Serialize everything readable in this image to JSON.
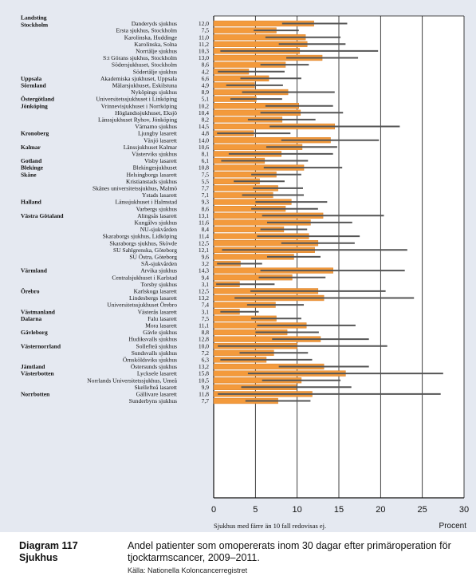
{
  "chart_data": {
    "type": "bar",
    "orientation": "horizontal",
    "x_ticks": [
      0,
      5,
      10,
      15,
      20,
      25,
      30
    ],
    "xlim": [
      0,
      30
    ],
    "xlabel": "Procent",
    "note": "Sjukhus med färre än 10 fall redovisas ej.",
    "colors": {
      "bar": "#f39a3c",
      "bar_stroke": "#d9822b",
      "interval": "#555555",
      "background": "#e5e9f1",
      "grid": "#111111"
    },
    "rows": [
      {
        "region": "Landsting Stockholm",
        "hospital": "Danderyds sjukhus",
        "value": 12.0,
        "low": 8.2,
        "high": 16.0
      },
      {
        "region": "",
        "hospital": "Ersta sjukhus, Stockholm",
        "value": 7.5,
        "low": 4.8,
        "high": 10.2
      },
      {
        "region": "",
        "hospital": "Karolinska, Huddinge",
        "value": 11.0,
        "low": 6.2,
        "high": 15.2
      },
      {
        "region": "",
        "hospital": "Karolinska, Solna",
        "value": 11.2,
        "low": 7.8,
        "high": 15.8
      },
      {
        "region": "",
        "hospital": "Norrtälje sjukhus",
        "value": 10.3,
        "low": 0.8,
        "high": 19.7
      },
      {
        "region": "",
        "hospital": "S:t Görans sjukhus, Stockholm",
        "value": 13.0,
        "low": 8.7,
        "high": 17.3
      },
      {
        "region": "",
        "hospital": "Södersjukhuset, Stockholm",
        "value": 8.6,
        "low": 5.6,
        "high": 11.4
      },
      {
        "region": "",
        "hospital": "Södertälje sjukhus",
        "value": 4.2,
        "low": 0.5,
        "high": 8.5
      },
      {
        "region": "Uppsala",
        "hospital": "Akademiska sjukhuset, Uppsala",
        "value": 6.6,
        "low": 3.2,
        "high": 10.5
      },
      {
        "region": "Sörmland",
        "hospital": "Mälarsjukhuset, Eskilstuna",
        "value": 4.9,
        "low": 1.5,
        "high": 8.3
      },
      {
        "region": "",
        "hospital": "Nyköpings sjukhus",
        "value": 8.9,
        "low": 3.4,
        "high": 14.5
      },
      {
        "region": "Östergötland",
        "hospital": "Universitetssjukhuset i Linköping",
        "value": 5.1,
        "low": 2.0,
        "high": 8.2
      },
      {
        "region": "Jönköping",
        "hospital": "Vrinnevisjukhuset i Norrköping",
        "value": 10.2,
        "low": 6.2,
        "high": 14.3
      },
      {
        "region": "",
        "hospital": "Höglandssjukhuset, Eksjö",
        "value": 10.4,
        "low": 5.6,
        "high": 15.5
      },
      {
        "region": "",
        "hospital": "Länssjukhuset Ryhov, Jönköping",
        "value": 8.2,
        "low": 4.1,
        "high": 12.2
      },
      {
        "region": "",
        "hospital": "Värnamo sjukhus",
        "value": 14.5,
        "low": 6.7,
        "high": 22.3
      },
      {
        "region": "Kronoberg",
        "hospital": "Ljungby lasarett",
        "value": 4.8,
        "low": 0.4,
        "high": 9.2
      },
      {
        "region": "",
        "hospital": "Växjö lasarett",
        "value": 14.0,
        "low": 8.1,
        "high": 19.8
      },
      {
        "region": "Kalmar",
        "hospital": "Länssjukhuset Kalmar",
        "value": 10.6,
        "low": 6.3,
        "high": 14.8
      },
      {
        "region": "",
        "hospital": "Västerviks sjukhus",
        "value": 8.1,
        "low": 1.8,
        "high": 14.3
      },
      {
        "region": "Gotland",
        "hospital": "Visby lasarett",
        "value": 6.1,
        "low": 0.9,
        "high": 11.3
      },
      {
        "region": "Blekinge",
        "hospital": "Blekingesjukhuset",
        "value": 10.8,
        "low": 6.0,
        "high": 15.4
      },
      {
        "region": "Skåne",
        "hospital": "Helsingborgs lasarett",
        "value": 7.5,
        "low": 4.5,
        "high": 10.5
      },
      {
        "region": "",
        "hospital": "Kristianstads sjukhus",
        "value": 5.5,
        "low": 2.4,
        "high": 8.5
      },
      {
        "region": "",
        "hospital": "Skånes universitetssjukhus, Malmö",
        "value": 7.7,
        "low": 4.7,
        "high": 10.7
      },
      {
        "region": "",
        "hospital": "Ystads lasarett",
        "value": 7.1,
        "low": 3.4,
        "high": 10.8
      },
      {
        "region": "Halland",
        "hospital": "Länssjukhuset i Halmstad",
        "value": 9.3,
        "low": 5.0,
        "high": 13.6
      },
      {
        "region": "",
        "hospital": "Varbergs sjukhus",
        "value": 8.6,
        "low": 4.5,
        "high": 12.5
      },
      {
        "region": "Västra Götaland",
        "hospital": "Alingsås lasarett",
        "value": 13.1,
        "low": 5.8,
        "high": 20.4
      },
      {
        "region": "",
        "hospital": "Kungälvs sjukhus",
        "value": 11.6,
        "low": 6.4,
        "high": 16.6
      },
      {
        "region": "",
        "hospital": "NU-sjukvården",
        "value": 8.4,
        "low": 5.6,
        "high": 11.2
      },
      {
        "region": "",
        "hospital": "Skaraborgs sjukhus, Lidköping",
        "value": 11.4,
        "low": 5.2,
        "high": 17.5
      },
      {
        "region": "",
        "hospital": "Skaraborgs sjukhus, Skövde",
        "value": 12.5,
        "low": 8.1,
        "high": 16.9
      },
      {
        "region": "",
        "hospital": "SU Sahlgrenska, Göteborg",
        "value": 12.1,
        "low": 1.0,
        "high": 23.2
      },
      {
        "region": "",
        "hospital": "SU Östra, Göteborg",
        "value": 9.6,
        "low": 6.4,
        "high": 12.8
      },
      {
        "region": "",
        "hospital": "SÄ-sjukvården",
        "value": 3.2,
        "low": 0.4,
        "high": 5.8
      },
      {
        "region": "Värmland",
        "hospital": "Arvika sjukhus",
        "value": 14.3,
        "low": 5.6,
        "high": 22.9
      },
      {
        "region": "",
        "hospital": "Centralsjukhuset i Karlstad",
        "value": 9.4,
        "low": 5.4,
        "high": 13.4
      },
      {
        "region": "",
        "hospital": "Torsby sjukhus",
        "value": 3.1,
        "low": 0.3,
        "high": 7.3
      },
      {
        "region": "Örebro",
        "hospital": "Karlskoga lasarett",
        "value": 12.5,
        "low": 4.4,
        "high": 20.6
      },
      {
        "region": "",
        "hospital": "Lindesbergs lasarett",
        "value": 13.2,
        "low": 2.5,
        "high": 24.0
      },
      {
        "region": "",
        "hospital": "Universitetssjukhuset Örebro",
        "value": 7.4,
        "low": 4.0,
        "high": 10.8
      },
      {
        "region": "Västmanland",
        "hospital": "Västerås lasarett",
        "value": 3.1,
        "low": 0.8,
        "high": 5.4
      },
      {
        "region": "Dalarna",
        "hospital": "Falu lasarett",
        "value": 7.5,
        "low": 4.5,
        "high": 10.5
      },
      {
        "region": "",
        "hospital": "Mora lasarett",
        "value": 11.1,
        "low": 5.2,
        "high": 17.0
      },
      {
        "region": "Gävleborg",
        "hospital": "Gävle sjukhus",
        "value": 8.8,
        "low": 5.0,
        "high": 12.6
      },
      {
        "region": "",
        "hospital": "Hudiksvalls sjukhus",
        "value": 12.8,
        "low": 7.0,
        "high": 18.6
      },
      {
        "region": "Västernorrland",
        "hospital": "Sollefteå sjukhus",
        "value": 10.0,
        "low": 0.5,
        "high": 20.8
      },
      {
        "region": "",
        "hospital": "Sundsvalls sjukhus",
        "value": 7.2,
        "low": 3.1,
        "high": 11.3
      },
      {
        "region": "",
        "hospital": "Örnsköldsviks sjukhus",
        "value": 6.3,
        "low": 0.8,
        "high": 11.8
      },
      {
        "region": "Jämtland",
        "hospital": "Östersunds sjukhus",
        "value": 13.2,
        "low": 7.8,
        "high": 18.6
      },
      {
        "region": "Västerbotten",
        "hospital": "Lycksele lasarett",
        "value": 15.8,
        "low": 4.1,
        "high": 27.5
      },
      {
        "region": "",
        "hospital": "Norrlands Universitetssjukhus, Umeå",
        "value": 10.5,
        "low": 5.8,
        "high": 15.2
      },
      {
        "region": "",
        "hospital": "Skellefteå lasarett",
        "value": 9.9,
        "low": 3.3,
        "high": 16.5
      },
      {
        "region": "Norrbotten",
        "hospital": "Gällivare lasarett",
        "value": 11.8,
        "low": 0.5,
        "high": 27.2
      },
      {
        "region": "",
        "hospital": "Sunderbyns sjukhus",
        "value": 7.7,
        "low": 3.8,
        "high": 11.6
      }
    ]
  },
  "caption": {
    "diagram_number": "Diagram 117",
    "subject": "Sjukhus",
    "text": "Andel patienter som omopererats inom 30 dagar efter primäroperation för tjocktarmscancer, 2009–2011.",
    "source": "Källa: Nationella Koloncancerregistret"
  }
}
